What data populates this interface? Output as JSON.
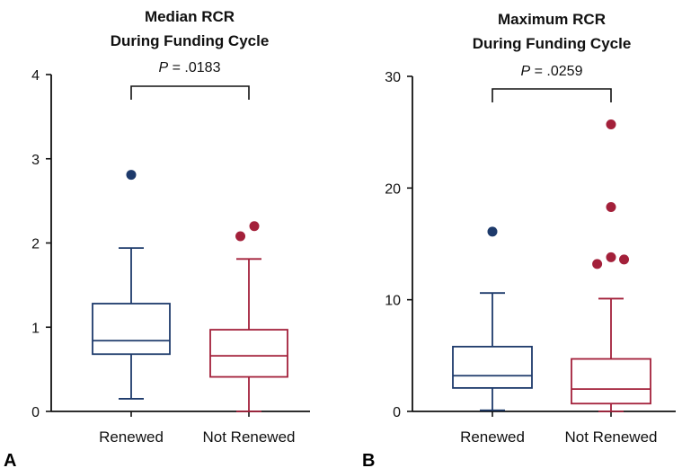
{
  "colors": {
    "renewed": "#1d3a6b",
    "not_renewed": "#a3203a",
    "axis": "#111111"
  },
  "chart_data": [
    {
      "type": "box",
      "panel_label": "A",
      "title_lines": [
        "Median RCR",
        "During Funding Cycle"
      ],
      "ylim": [
        0,
        4
      ],
      "yticks": [
        0,
        1,
        2,
        3,
        4
      ],
      "categories": [
        "Renewed",
        "Not Renewed"
      ],
      "p_value": {
        "prefix": "P",
        "text": " = .0183"
      },
      "boxes": [
        {
          "category": "Renewed",
          "whisker_low": 0.15,
          "q1": 0.68,
          "median": 0.84,
          "q3": 1.28,
          "whisker_high": 1.94,
          "outliers": [
            [
              0,
              2.81
            ]
          ]
        },
        {
          "category": "Not Renewed",
          "whisker_low": 0.0,
          "q1": 0.41,
          "median": 0.66,
          "q3": 0.97,
          "whisker_high": 1.81,
          "outliers": [
            [
              -0.22,
              2.08
            ],
            [
              0.14,
              2.2
            ]
          ]
        }
      ]
    },
    {
      "type": "box",
      "panel_label": "B",
      "title_lines": [
        "Maximum RCR",
        "During Funding Cycle"
      ],
      "ylim": [
        0,
        30
      ],
      "yticks": [
        0,
        10,
        20,
        30
      ],
      "categories": [
        "Renewed",
        "Not Renewed"
      ],
      "p_value": {
        "prefix": "P",
        "text": " = .0259"
      },
      "boxes": [
        {
          "category": "Renewed",
          "whisker_low": 0.1,
          "q1": 2.1,
          "median": 3.2,
          "q3": 5.8,
          "whisker_high": 10.6,
          "outliers": [
            [
              0,
              16.1
            ]
          ]
        },
        {
          "category": "Not Renewed",
          "whisker_low": 0.0,
          "q1": 0.7,
          "median": 2.0,
          "q3": 4.7,
          "whisker_high": 10.1,
          "outliers": [
            [
              -0.35,
              13.2
            ],
            [
              0,
              13.8
            ],
            [
              0.33,
              13.6
            ],
            [
              0,
              18.3
            ],
            [
              0,
              25.7
            ]
          ]
        }
      ]
    }
  ]
}
